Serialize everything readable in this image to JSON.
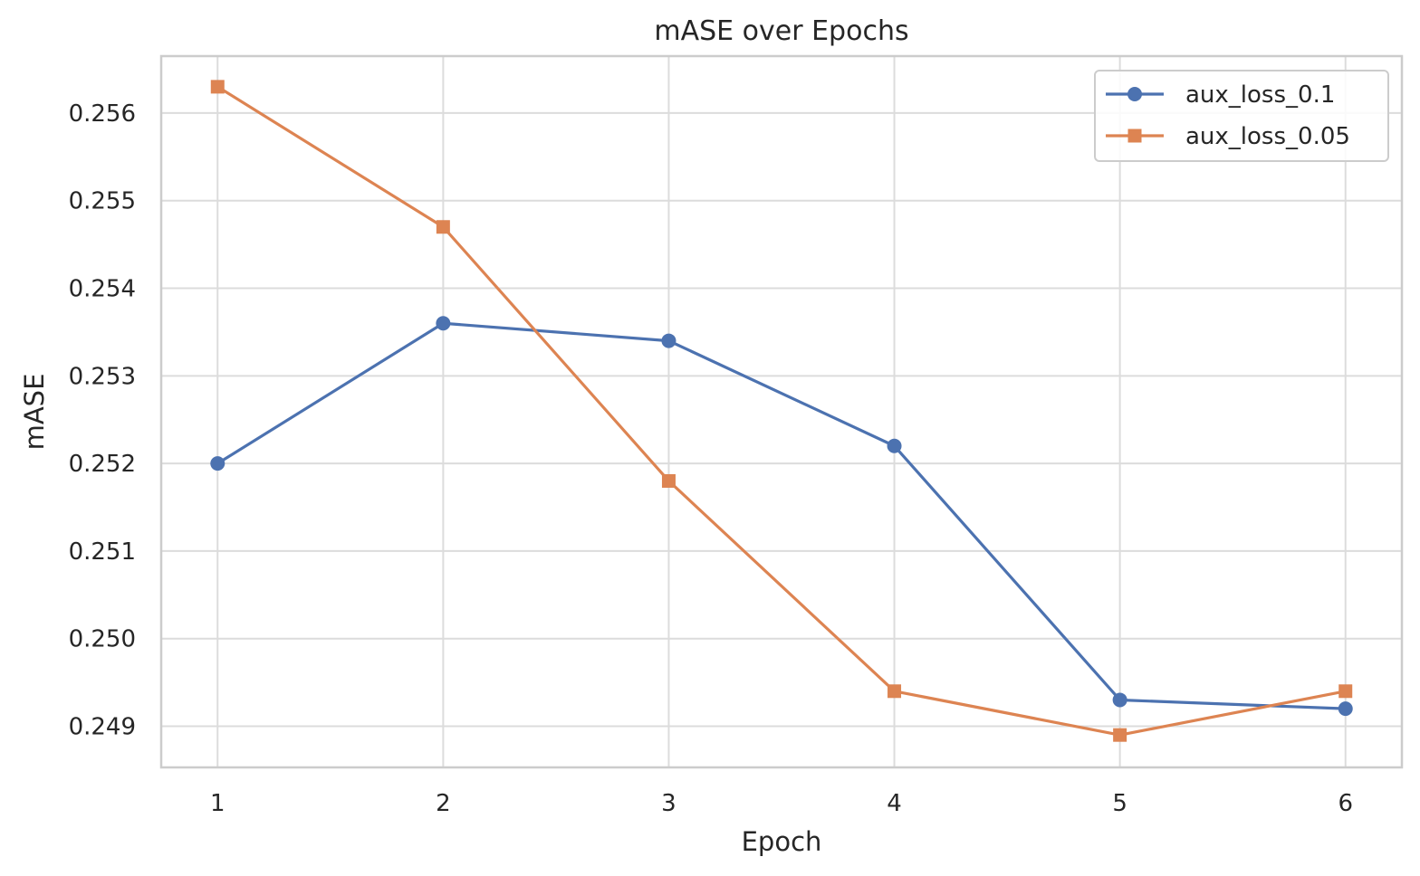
{
  "chart_data": {
    "type": "line",
    "title": "mASE over Epochs",
    "xlabel": "Epoch",
    "ylabel": "mASE",
    "x": [
      1,
      2,
      3,
      4,
      5,
      6
    ],
    "xlim": [
      0.75,
      6.25
    ],
    "ylim": [
      0.24853,
      0.25665
    ],
    "yticks": [
      0.249,
      0.25,
      0.251,
      0.252,
      0.253,
      0.254,
      0.255,
      0.256
    ],
    "ytick_labels": [
      "0.249",
      "0.250",
      "0.251",
      "0.252",
      "0.253",
      "0.254",
      "0.255",
      "0.256"
    ],
    "xtick_labels": [
      "1",
      "2",
      "3",
      "4",
      "5",
      "6"
    ],
    "grid": true,
    "legend": "top-right",
    "series": [
      {
        "name": "aux_loss_0.1",
        "marker": "circle",
        "color": "#4c72b0",
        "values": [
          0.252,
          0.2536,
          0.2534,
          0.2522,
          0.2493,
          0.2492
        ]
      },
      {
        "name": "aux_loss_0.05",
        "marker": "square",
        "color": "#dd8452",
        "values": [
          0.2563,
          0.2547,
          0.2518,
          0.2494,
          0.2489,
          0.2494
        ]
      }
    ]
  }
}
